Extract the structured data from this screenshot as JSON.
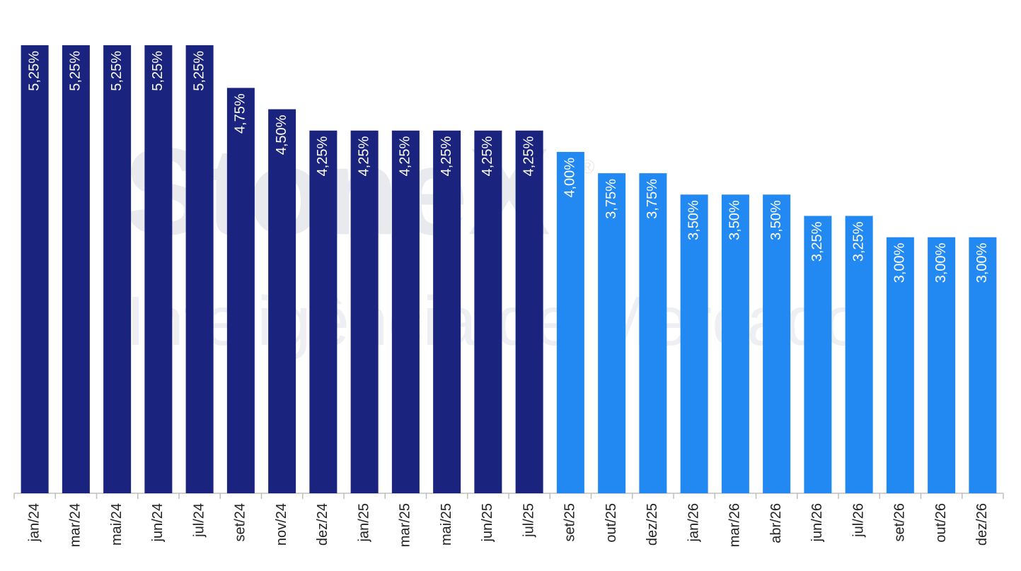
{
  "chart_data": {
    "type": "bar",
    "watermark": {
      "brand": "StoneX",
      "mark": "®",
      "subtitle": "Inteligência de Mercado"
    },
    "categories": [
      "jan/24",
      "mar/24",
      "mai/24",
      "jun/24",
      "jul/24",
      "set/24",
      "nov/24",
      "dez/24",
      "jan/25",
      "mar/25",
      "mai/25",
      "jun/25",
      "jul/25",
      "set/25",
      "out/25",
      "dez/25",
      "jan/26",
      "mar/26",
      "abr/26",
      "jun/26",
      "jul/26",
      "set/26",
      "out/26",
      "dez/26"
    ],
    "values": [
      5.25,
      5.25,
      5.25,
      5.25,
      5.25,
      4.75,
      4.5,
      4.25,
      4.25,
      4.25,
      4.25,
      4.25,
      4.25,
      4.0,
      3.75,
      3.75,
      3.5,
      3.5,
      3.5,
      3.25,
      3.25,
      3.0,
      3.0,
      3.0
    ],
    "value_labels": [
      "5,25%",
      "5,25%",
      "5,25%",
      "5,25%",
      "5,25%",
      "4,75%",
      "4,50%",
      "4,25%",
      "4,25%",
      "4,25%",
      "4,25%",
      "4,25%",
      "4,25%",
      "4,00%",
      "3,75%",
      "3,75%",
      "3,50%",
      "3,50%",
      "3,50%",
      "3,25%",
      "3,25%",
      "3,00%",
      "3,00%",
      "3,00%"
    ],
    "colors": [
      "#1a237e",
      "#1a237e",
      "#1a237e",
      "#1a237e",
      "#1a237e",
      "#1a237e",
      "#1a237e",
      "#1a237e",
      "#1a237e",
      "#1a237e",
      "#1a237e",
      "#1a237e",
      "#1a237e",
      "#2289f3",
      "#2289f3",
      "#2289f3",
      "#2289f3",
      "#2289f3",
      "#2289f3",
      "#2289f3",
      "#2289f3",
      "#2289f3",
      "#2289f3",
      "#2289f3"
    ]
  }
}
